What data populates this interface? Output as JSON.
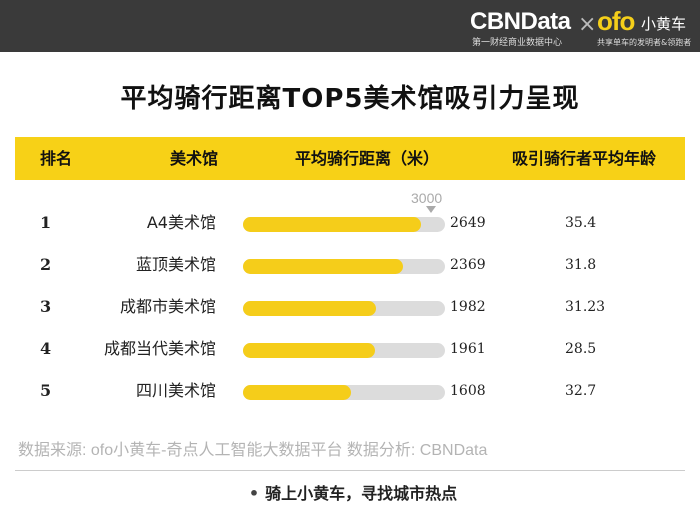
{
  "banner": {
    "brand_title": "CBNData",
    "brand_subtitle": "第一财经商业数据中心",
    "separator": "×",
    "partner_logo": "ofo",
    "partner_name": "小黄车",
    "partner_slogan": "共享单车的发明者&领跑者",
    "background_color": "#3a3a3a",
    "partner_color": "#f5cf1a"
  },
  "title": "平均骑行距离TOP5美术馆吸引力呈现",
  "table": {
    "headers": {
      "rank": "排名",
      "museum": "美术馆",
      "distance": "平均骑行距离（米）",
      "age": "吸引骑行者平均年龄"
    },
    "header_color": "#f7d117"
  },
  "chart_data": {
    "type": "bar",
    "orientation": "horizontal",
    "max_value": 3000,
    "max_label": "3000",
    "categories": [
      "A4美术馆",
      "蓝顶美术馆",
      "成都市美术馆",
      "成都当代美术馆",
      "四川美术馆"
    ],
    "ranks": [
      "1",
      "2",
      "3",
      "4",
      "5"
    ],
    "values": [
      2649,
      2369,
      1982,
      1961,
      1608
    ],
    "value_labels": [
      "2649",
      "2369",
      "1982",
      "1961",
      "1608"
    ],
    "ages": [
      "35.4",
      "31.8",
      "31.23",
      "28.5",
      "32.7"
    ],
    "bar_color": "#f5cd1a",
    "track_color": "#dcdcdc"
  },
  "source": "数据来源: ofo小黄车-奇点人工智能大数据平台    数据分析: CBNData",
  "footer": {
    "dot": "•",
    "slogan": "骑上小黄车，寻找城市热点"
  }
}
